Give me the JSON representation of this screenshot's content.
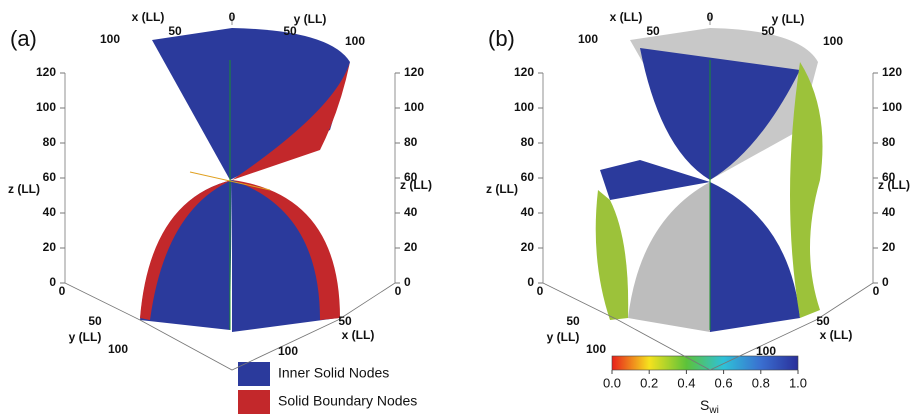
{
  "panels": [
    {
      "label": "(a)",
      "x_label": "x (LL)",
      "y_label": "y (LL)",
      "z_label": "z (LL)",
      "top_ticks": [
        "100",
        "50",
        "0",
        "50",
        "100"
      ],
      "z_ticks": [
        "0",
        "20",
        "40",
        "60",
        "80",
        "100",
        "120"
      ],
      "y_ticks": [
        "0",
        "50",
        "100"
      ],
      "x_ticks": [
        "0",
        "50",
        "100"
      ]
    },
    {
      "label": "(b)",
      "x_label": "x (LL)",
      "y_label": "y (LL)",
      "z_label": "z (LL)",
      "top_ticks": [
        "100",
        "50",
        "0",
        "50",
        "100"
      ],
      "z_ticks": [
        "0",
        "20",
        "40",
        "60",
        "80",
        "100",
        "120"
      ],
      "y_ticks": [
        "0",
        "50",
        "100"
      ],
      "x_ticks": [
        "0",
        "50",
        "100"
      ]
    }
  ],
  "legend": [
    {
      "label": "Inner Solid Nodes",
      "color": "#2b3a9c"
    },
    {
      "label": "Solid Boundary Nodes",
      "color": "#c3282b"
    }
  ],
  "colorbar": {
    "ticks": [
      "0.0",
      "0.2",
      "0.4",
      "0.6",
      "0.8",
      "1.0"
    ],
    "label": "S",
    "label_sub": "wi"
  }
}
